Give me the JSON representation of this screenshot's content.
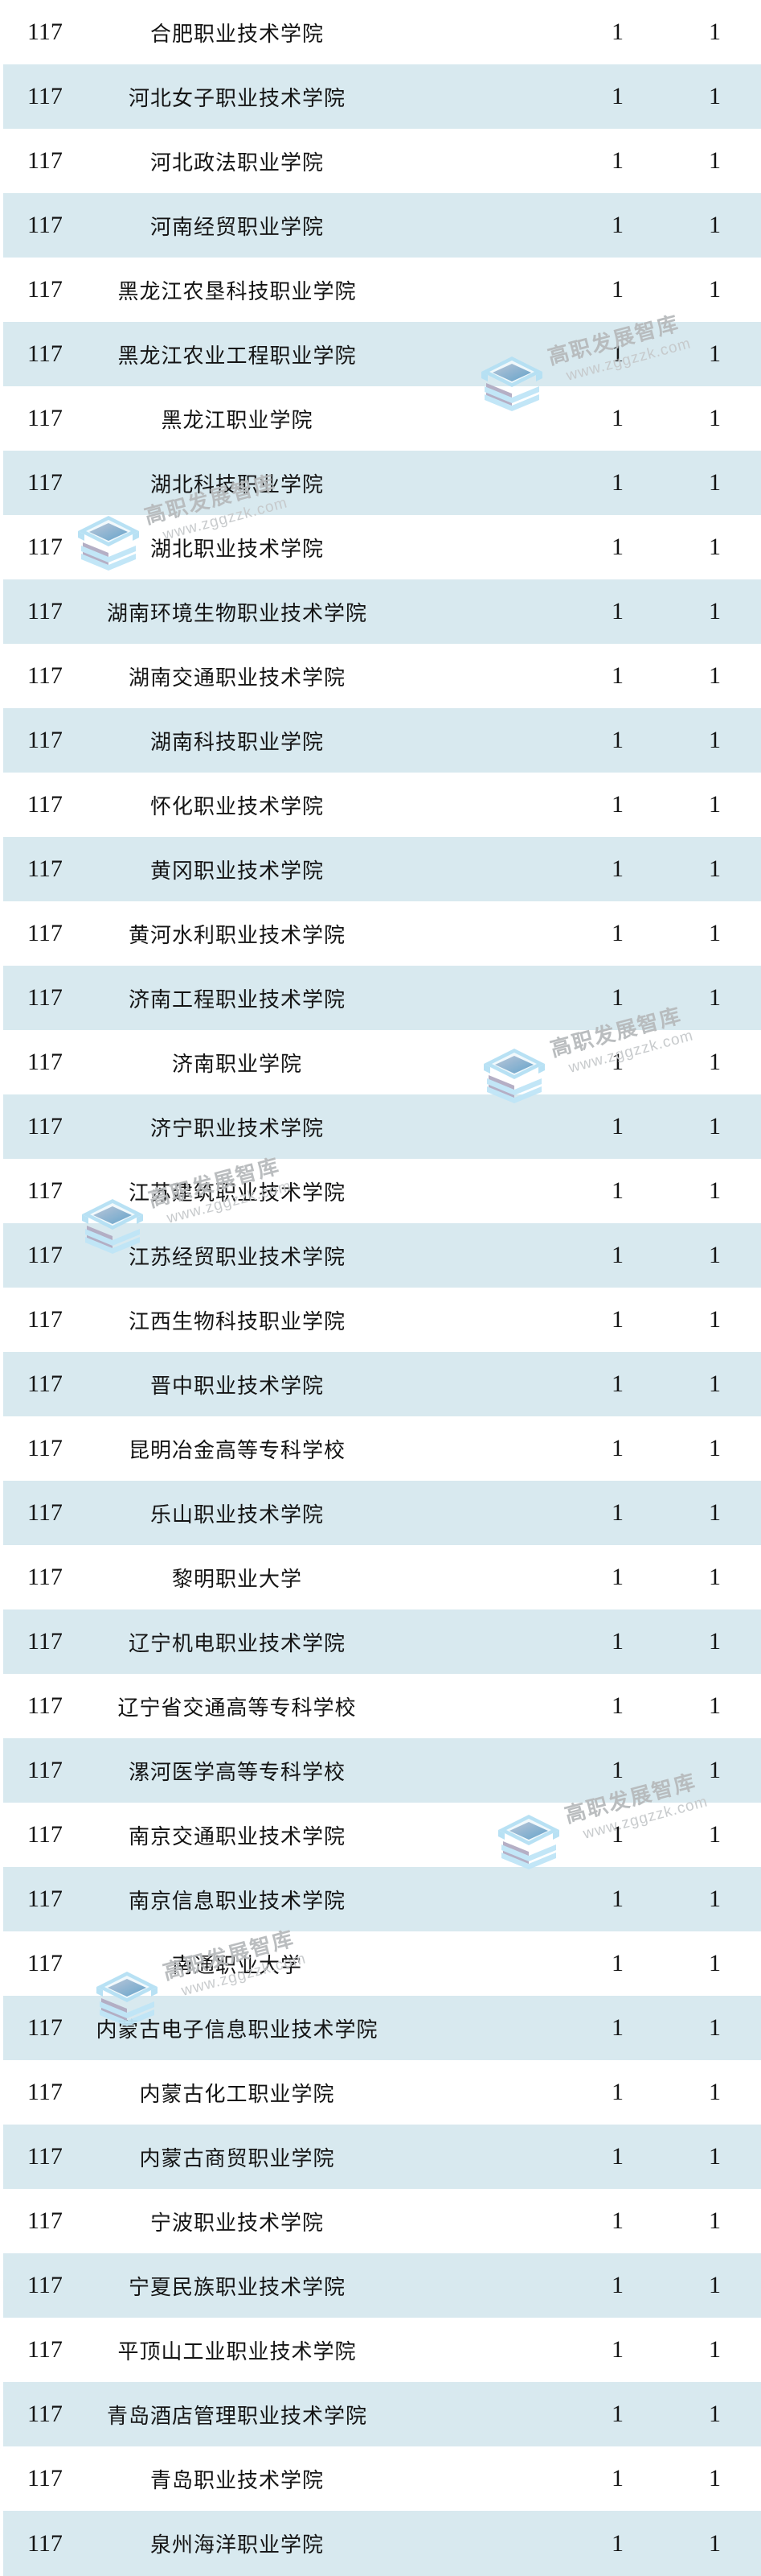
{
  "watermark": {
    "brand": "高职发展智库",
    "url": "www.zggzzk.com"
  },
  "colors": {
    "alt_row_blue": "#d8e9ef",
    "row_white": "#ffffff",
    "text": "#141414",
    "watermark_brand_gray": "#b7babc",
    "watermark_url_gray": "#c6c9cb",
    "watermark_logo_blue": "#bfe5f7"
  },
  "table": {
    "rows": [
      {
        "rank": "117",
        "name": "合肥职业技术学院",
        "v1": "1",
        "v2": "1"
      },
      {
        "rank": "117",
        "name": "河北女子职业技术学院",
        "v1": "1",
        "v2": "1"
      },
      {
        "rank": "117",
        "name": "河北政法职业学院",
        "v1": "1",
        "v2": "1"
      },
      {
        "rank": "117",
        "name": "河南经贸职业学院",
        "v1": "1",
        "v2": "1"
      },
      {
        "rank": "117",
        "name": "黑龙江农垦科技职业学院",
        "v1": "1",
        "v2": "1"
      },
      {
        "rank": "117",
        "name": "黑龙江农业工程职业学院",
        "v1": "1",
        "v2": "1"
      },
      {
        "rank": "117",
        "name": "黑龙江职业学院",
        "v1": "1",
        "v2": "1"
      },
      {
        "rank": "117",
        "name": "湖北科技职业学院",
        "v1": "1",
        "v2": "1"
      },
      {
        "rank": "117",
        "name": "湖北职业技术学院",
        "v1": "1",
        "v2": "1"
      },
      {
        "rank": "117",
        "name": "湖南环境生物职业技术学院",
        "v1": "1",
        "v2": "1"
      },
      {
        "rank": "117",
        "name": "湖南交通职业技术学院",
        "v1": "1",
        "v2": "1"
      },
      {
        "rank": "117",
        "name": "湖南科技职业学院",
        "v1": "1",
        "v2": "1"
      },
      {
        "rank": "117",
        "name": "怀化职业技术学院",
        "v1": "1",
        "v2": "1"
      },
      {
        "rank": "117",
        "name": "黄冈职业技术学院",
        "v1": "1",
        "v2": "1"
      },
      {
        "rank": "117",
        "name": "黄河水利职业技术学院",
        "v1": "1",
        "v2": "1"
      },
      {
        "rank": "117",
        "name": "济南工程职业技术学院",
        "v1": "1",
        "v2": "1"
      },
      {
        "rank": "117",
        "name": "济南职业学院",
        "v1": "1",
        "v2": "1"
      },
      {
        "rank": "117",
        "name": "济宁职业技术学院",
        "v1": "1",
        "v2": "1"
      },
      {
        "rank": "117",
        "name": "江苏建筑职业技术学院",
        "v1": "1",
        "v2": "1"
      },
      {
        "rank": "117",
        "name": "江苏经贸职业技术学院",
        "v1": "1",
        "v2": "1"
      },
      {
        "rank": "117",
        "name": "江西生物科技职业学院",
        "v1": "1",
        "v2": "1"
      },
      {
        "rank": "117",
        "name": "晋中职业技术学院",
        "v1": "1",
        "v2": "1"
      },
      {
        "rank": "117",
        "name": "昆明冶金高等专科学校",
        "v1": "1",
        "v2": "1"
      },
      {
        "rank": "117",
        "name": "乐山职业技术学院",
        "v1": "1",
        "v2": "1"
      },
      {
        "rank": "117",
        "name": "黎明职业大学",
        "v1": "1",
        "v2": "1"
      },
      {
        "rank": "117",
        "name": "辽宁机电职业技术学院",
        "v1": "1",
        "v2": "1"
      },
      {
        "rank": "117",
        "name": "辽宁省交通高等专科学校",
        "v1": "1",
        "v2": "1"
      },
      {
        "rank": "117",
        "name": "漯河医学高等专科学校",
        "v1": "1",
        "v2": "1"
      },
      {
        "rank": "117",
        "name": "南京交通职业技术学院",
        "v1": "1",
        "v2": "1"
      },
      {
        "rank": "117",
        "name": "南京信息职业技术学院",
        "v1": "1",
        "v2": "1"
      },
      {
        "rank": "117",
        "name": "南通职业大学",
        "v1": "1",
        "v2": "1"
      },
      {
        "rank": "117",
        "name": "内蒙古电子信息职业技术学院",
        "v1": "1",
        "v2": "1"
      },
      {
        "rank": "117",
        "name": "内蒙古化工职业学院",
        "v1": "1",
        "v2": "1"
      },
      {
        "rank": "117",
        "name": "内蒙古商贸职业学院",
        "v1": "1",
        "v2": "1"
      },
      {
        "rank": "117",
        "name": "宁波职业技术学院",
        "v1": "1",
        "v2": "1"
      },
      {
        "rank": "117",
        "name": "宁夏民族职业技术学院",
        "v1": "1",
        "v2": "1"
      },
      {
        "rank": "117",
        "name": "平顶山工业职业技术学院",
        "v1": "1",
        "v2": "1"
      },
      {
        "rank": "117",
        "name": "青岛酒店管理职业技术学院",
        "v1": "1",
        "v2": "1"
      },
      {
        "rank": "117",
        "name": "青岛职业技术学院",
        "v1": "1",
        "v2": "1"
      },
      {
        "rank": "117",
        "name": "泉州海洋职业学院",
        "v1": "1",
        "v2": "1"
      }
    ]
  }
}
